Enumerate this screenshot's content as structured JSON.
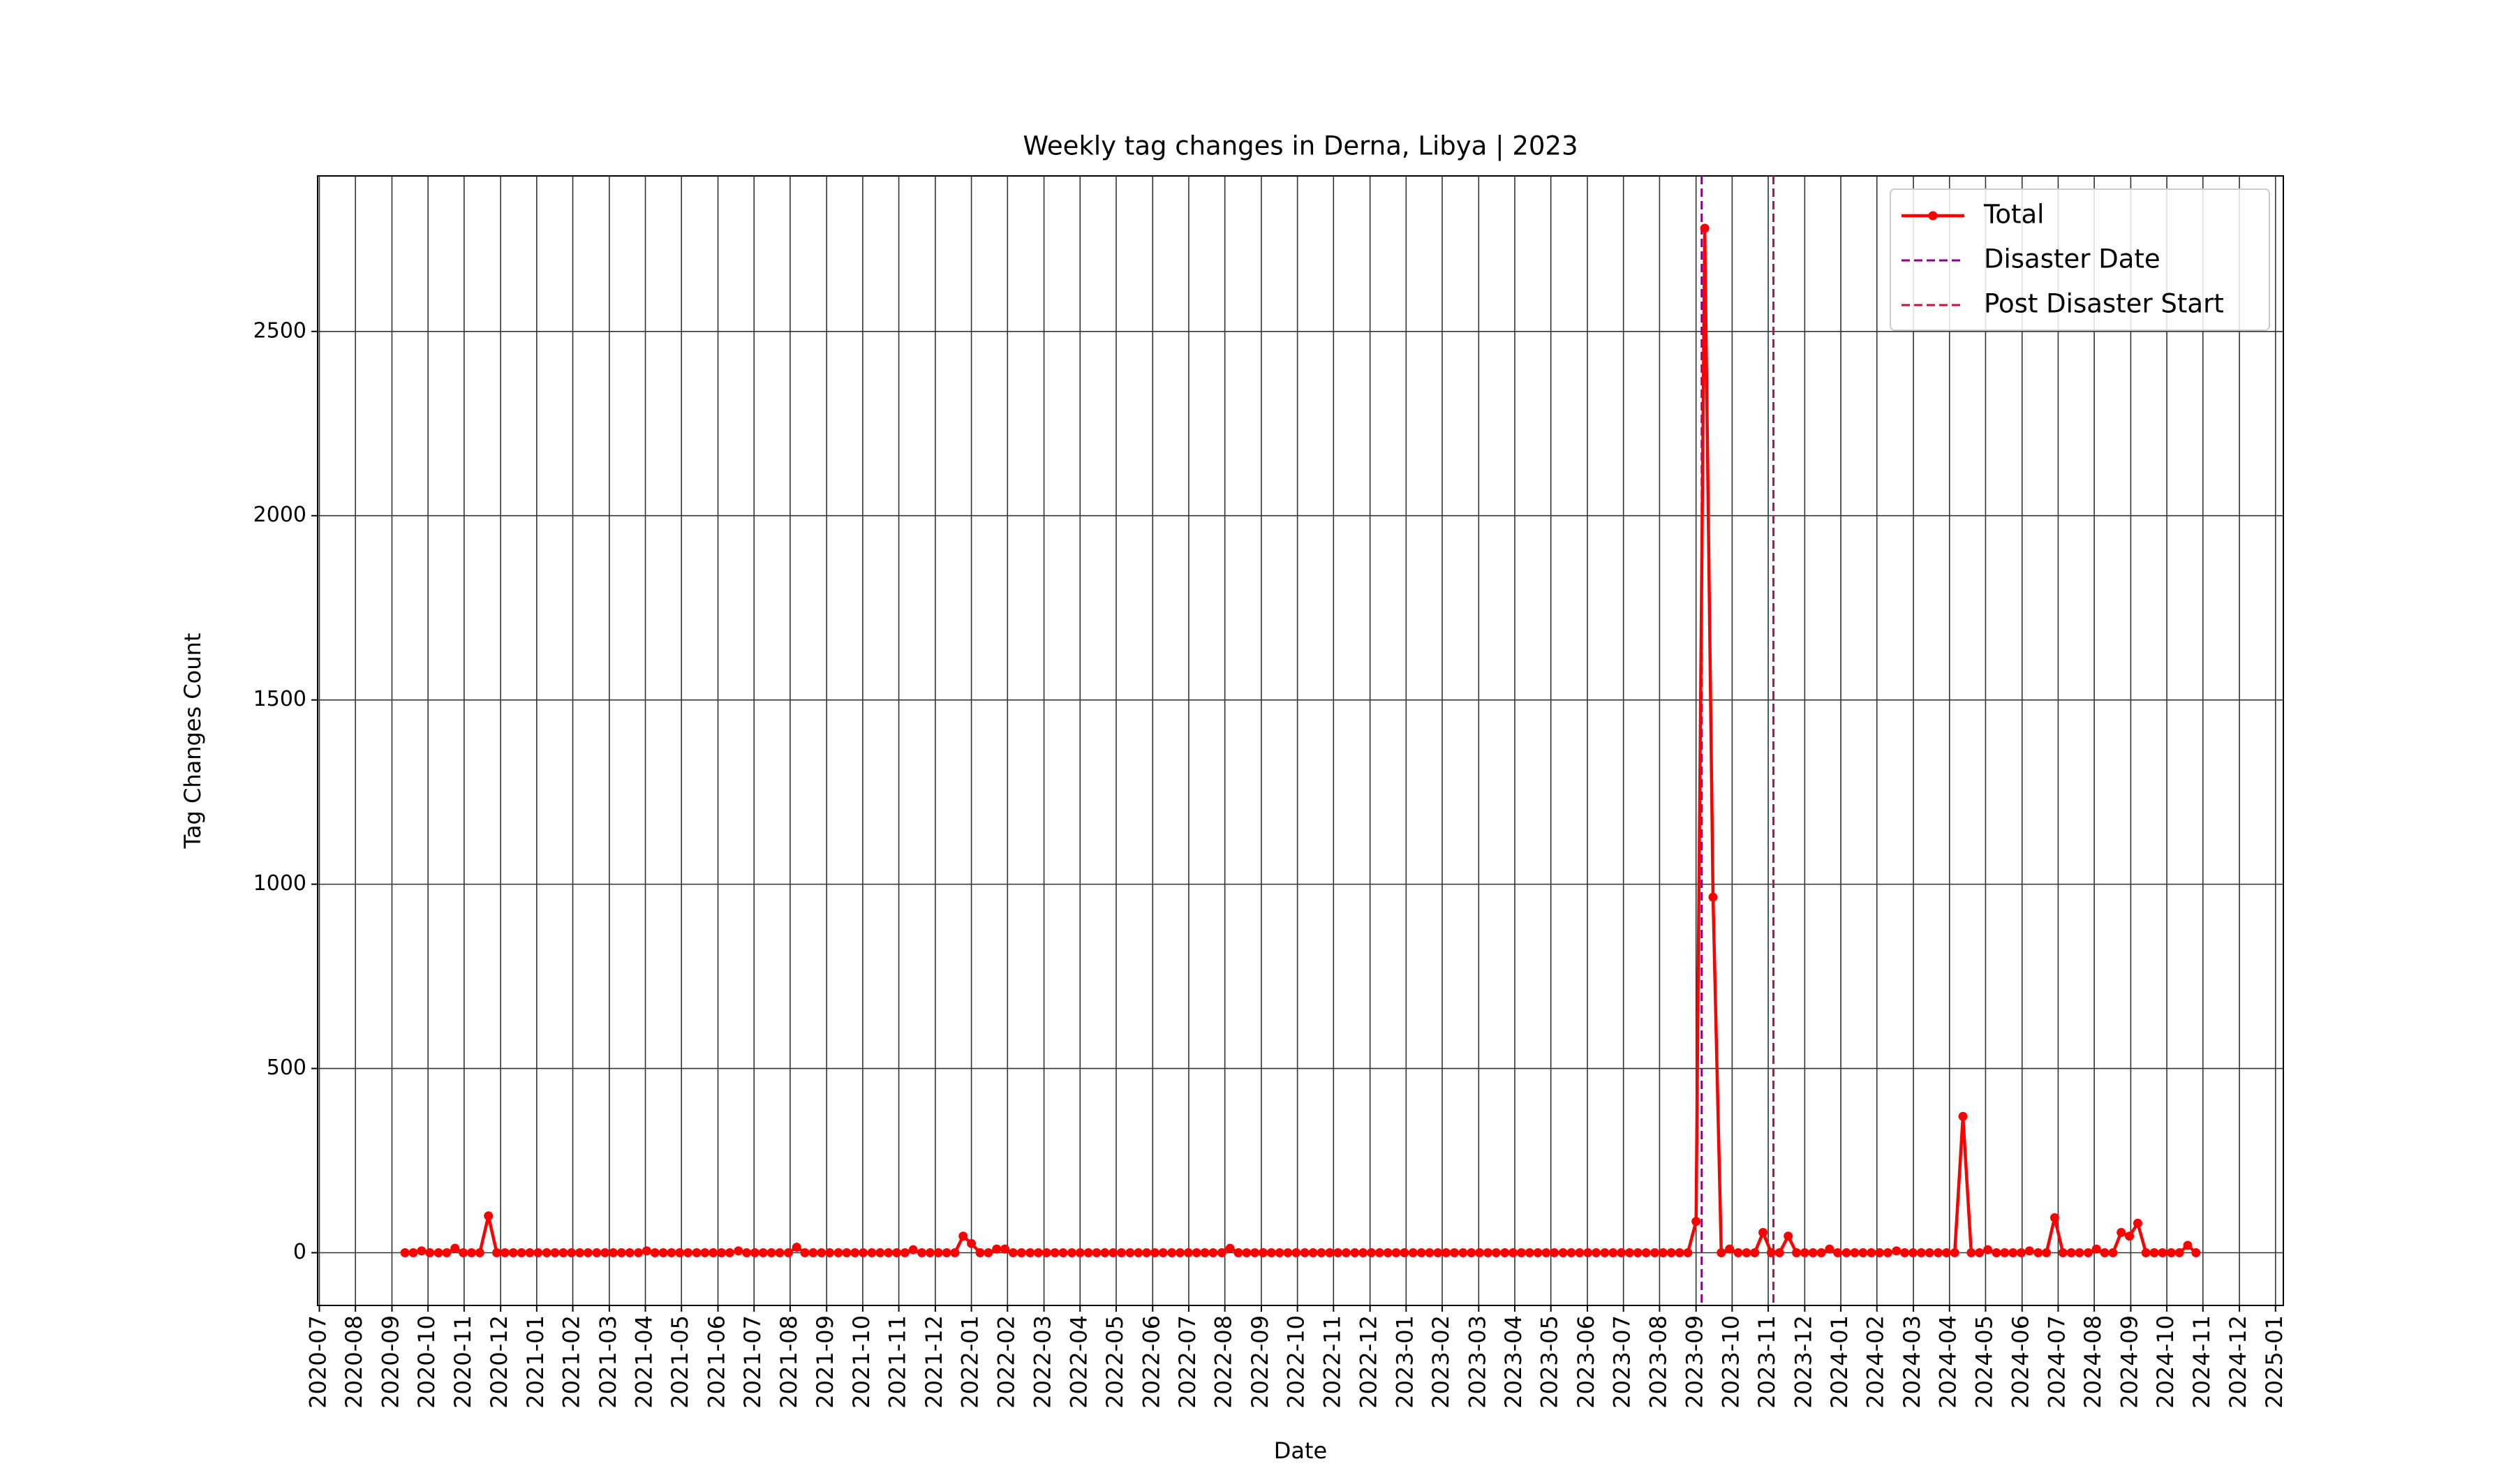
{
  "chart_data": {
    "type": "line",
    "title": "Weekly tag changes in Derna, Libya | 2023",
    "xlabel": "Date",
    "ylabel": "Tag Changes Count",
    "x": [
      2020.697,
      2020.716,
      2020.735,
      2020.754,
      2020.774,
      2020.793,
      2020.812,
      2020.831,
      2020.85,
      2020.869,
      2020.889,
      2020.908,
      2020.927,
      2020.946,
      2020.965,
      2020.984,
      2021.003,
      2021.023,
      2021.042,
      2021.061,
      2021.08,
      2021.099,
      2021.118,
      2021.138,
      2021.157,
      2021.176,
      2021.195,
      2021.214,
      2021.234,
      2021.253,
      2021.272,
      2021.291,
      2021.31,
      2021.329,
      2021.348,
      2021.368,
      2021.387,
      2021.406,
      2021.425,
      2021.444,
      2021.464,
      2021.483,
      2021.502,
      2021.521,
      2021.54,
      2021.559,
      2021.579,
      2021.598,
      2021.617,
      2021.636,
      2021.655,
      2021.674,
      2021.694,
      2021.713,
      2021.732,
      2021.751,
      2021.771,
      2021.79,
      2021.809,
      2021.828,
      2021.847,
      2021.866,
      2021.886,
      2021.905,
      2021.924,
      2021.943,
      2021.962,
      2021.981,
      2022.0,
      2022.02,
      2022.039,
      2022.058,
      2022.077,
      2022.096,
      2022.115,
      2022.135,
      2022.154,
      2022.173,
      2022.192,
      2022.211,
      2022.231,
      2022.25,
      2022.269,
      2022.288,
      2022.307,
      2022.326,
      2022.345,
      2022.365,
      2022.384,
      2022.403,
      2022.422,
      2022.441,
      2022.461,
      2022.48,
      2022.499,
      2022.518,
      2022.537,
      2022.556,
      2022.576,
      2022.595,
      2022.614,
      2022.633,
      2022.652,
      2022.671,
      2022.69,
      2022.709,
      2022.728,
      2022.747,
      2022.767,
      2022.786,
      2022.805,
      2022.824,
      2022.843,
      2022.862,
      2022.882,
      2022.901,
      2022.92,
      2022.939,
      2022.958,
      2022.977,
      2022.996,
      2023.016,
      2023.035,
      2023.054,
      2023.073,
      2023.092,
      2023.111,
      2023.131,
      2023.15,
      2023.169,
      2023.188,
      2023.207,
      2023.227,
      2023.246,
      2023.265,
      2023.284,
      2023.303,
      2023.322,
      2023.341,
      2023.361,
      2023.38,
      2023.399,
      2023.418,
      2023.437,
      2023.457,
      2023.476,
      2023.495,
      2023.514,
      2023.533,
      2023.552,
      2023.572,
      2023.591,
      2023.61,
      2023.629,
      2023.648,
      2023.667,
      2023.687,
      2023.706,
      2023.725,
      2023.744,
      2023.764,
      2023.783,
      2023.802,
      2023.821,
      2023.84,
      2023.859,
      2023.879,
      2023.898,
      2023.917,
      2023.936,
      2023.955,
      2023.974,
      2023.993,
      2024.013,
      2024.032,
      2024.051,
      2024.07,
      2024.089,
      2024.108,
      2024.128,
      2024.147,
      2024.166,
      2024.185,
      2024.204,
      2024.224,
      2024.243,
      2024.262,
      2024.281,
      2024.3,
      2024.319,
      2024.338,
      2024.358,
      2024.377,
      2024.396,
      2024.415,
      2024.434,
      2024.454,
      2024.473,
      2024.492,
      2024.511,
      2024.53,
      2024.549,
      2024.569,
      2024.588,
      2024.607,
      2024.626,
      2024.645,
      2024.664,
      2024.683,
      2024.702,
      2024.721,
      2024.74,
      2024.76,
      2024.779,
      2024.798,
      2024.817
    ],
    "series": [
      {
        "name": "Total",
        "color": "#ff0000",
        "values": [
          0,
          0,
          5,
          0,
          0,
          0,
          12,
          0,
          0,
          0,
          100,
          0,
          0,
          0,
          0,
          0,
          0,
          0,
          0,
          0,
          0,
          0,
          0,
          0,
          0,
          0,
          0,
          0,
          0,
          5,
          0,
          0,
          0,
          0,
          0,
          0,
          0,
          0,
          0,
          0,
          5,
          0,
          0,
          0,
          0,
          0,
          0,
          15,
          0,
          0,
          0,
          0,
          0,
          0,
          0,
          0,
          0,
          0,
          0,
          0,
          0,
          8,
          0,
          0,
          0,
          0,
          0,
          45,
          25,
          0,
          0,
          10,
          10,
          0,
          0,
          0,
          0,
          0,
          0,
          0,
          0,
          0,
          0,
          0,
          0,
          0,
          0,
          0,
          0,
          0,
          0,
          0,
          0,
          0,
          0,
          0,
          0,
          0,
          0,
          12,
          0,
          0,
          0,
          0,
          0,
          0,
          0,
          0,
          0,
          0,
          0,
          0,
          0,
          0,
          0,
          0,
          0,
          0,
          0,
          0,
          0,
          0,
          0,
          0,
          0,
          0,
          0,
          0,
          0,
          0,
          0,
          0,
          0,
          0,
          0,
          0,
          0,
          0,
          0,
          0,
          0,
          0,
          0,
          0,
          0,
          0,
          0,
          0,
          0,
          0,
          0,
          0,
          0,
          0,
          0,
          85,
          2780,
          965,
          0,
          10,
          0,
          0,
          0,
          55,
          0,
          0,
          45,
          0,
          0,
          0,
          0,
          10,
          0,
          0,
          0,
          0,
          0,
          0,
          0,
          5,
          0,
          0,
          0,
          0,
          0,
          0,
          0,
          370,
          0,
          0,
          8,
          0,
          0,
          0,
          0,
          5,
          0,
          0,
          95,
          0,
          0,
          0,
          0,
          10,
          0,
          0,
          55,
          45,
          80,
          0,
          0,
          0,
          0,
          0,
          20,
          0
        ]
      }
    ],
    "vlines": [
      {
        "name": "Disaster Date",
        "x": 2023.68,
        "color": "#8b008b"
      },
      {
        "name": "Post Disaster Start",
        "x": 2023.845,
        "color": "#c0143c"
      }
    ],
    "xlim": [
      2020.496,
      2025.018
    ],
    "xticks": [
      {
        "value": 2020.5,
        "label": "2020-07"
      },
      {
        "value": 2020.583,
        "label": "2020-08"
      },
      {
        "value": 2020.667,
        "label": "2020-09"
      },
      {
        "value": 2020.75,
        "label": "2020-10"
      },
      {
        "value": 2020.833,
        "label": "2020-11"
      },
      {
        "value": 2020.917,
        "label": "2020-12"
      },
      {
        "value": 2021,
        "label": "2021-01"
      },
      {
        "value": 2021.083,
        "label": "2021-02"
      },
      {
        "value": 2021.167,
        "label": "2021-03"
      },
      {
        "value": 2021.25,
        "label": "2021-04"
      },
      {
        "value": 2021.333,
        "label": "2021-05"
      },
      {
        "value": 2021.417,
        "label": "2021-06"
      },
      {
        "value": 2021.5,
        "label": "2021-07"
      },
      {
        "value": 2021.583,
        "label": "2021-08"
      },
      {
        "value": 2021.667,
        "label": "2021-09"
      },
      {
        "value": 2021.75,
        "label": "2021-10"
      },
      {
        "value": 2021.833,
        "label": "2021-11"
      },
      {
        "value": 2021.917,
        "label": "2021-12"
      },
      {
        "value": 2022,
        "label": "2022-01"
      },
      {
        "value": 2022.083,
        "label": "2022-02"
      },
      {
        "value": 2022.167,
        "label": "2022-03"
      },
      {
        "value": 2022.25,
        "label": "2022-04"
      },
      {
        "value": 2022.333,
        "label": "2022-05"
      },
      {
        "value": 2022.417,
        "label": "2022-06"
      },
      {
        "value": 2022.5,
        "label": "2022-07"
      },
      {
        "value": 2022.583,
        "label": "2022-08"
      },
      {
        "value": 2022.667,
        "label": "2022-09"
      },
      {
        "value": 2022.75,
        "label": "2022-10"
      },
      {
        "value": 2022.833,
        "label": "2022-11"
      },
      {
        "value": 2022.917,
        "label": "2022-12"
      },
      {
        "value": 2023,
        "label": "2023-01"
      },
      {
        "value": 2023.083,
        "label": "2023-02"
      },
      {
        "value": 2023.167,
        "label": "2023-03"
      },
      {
        "value": 2023.25,
        "label": "2023-04"
      },
      {
        "value": 2023.333,
        "label": "2023-05"
      },
      {
        "value": 2023.417,
        "label": "2023-06"
      },
      {
        "value": 2023.5,
        "label": "2023-07"
      },
      {
        "value": 2023.583,
        "label": "2023-08"
      },
      {
        "value": 2023.667,
        "label": "2023-09"
      },
      {
        "value": 2023.75,
        "label": "2023-10"
      },
      {
        "value": 2023.833,
        "label": "2023-11"
      },
      {
        "value": 2023.917,
        "label": "2023-12"
      },
      {
        "value": 2024,
        "label": "2024-01"
      },
      {
        "value": 2024.083,
        "label": "2024-02"
      },
      {
        "value": 2024.167,
        "label": "2024-03"
      },
      {
        "value": 2024.25,
        "label": "2024-04"
      },
      {
        "value": 2024.333,
        "label": "2024-05"
      },
      {
        "value": 2024.417,
        "label": "2024-06"
      },
      {
        "value": 2024.5,
        "label": "2024-07"
      },
      {
        "value": 2024.583,
        "label": "2024-08"
      },
      {
        "value": 2024.667,
        "label": "2024-09"
      },
      {
        "value": 2024.75,
        "label": "2024-10"
      },
      {
        "value": 2024.833,
        "label": "2024-11"
      },
      {
        "value": 2024.917,
        "label": "2024-12"
      },
      {
        "value": 2025,
        "label": "2025-01"
      }
    ],
    "ylim": [
      -143,
      2922
    ],
    "yticks": [
      0,
      500,
      1000,
      1500,
      2000,
      2500
    ],
    "grid": true,
    "legend": "upper right"
  }
}
